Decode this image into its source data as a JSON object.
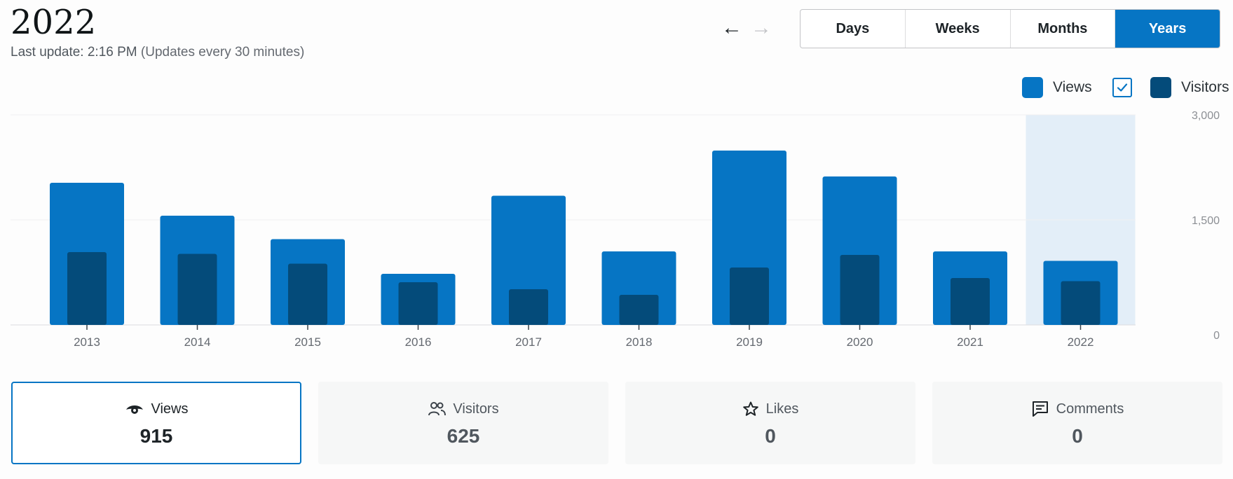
{
  "header": {
    "title": "2022",
    "last_update": "Last update: 2:16 PM",
    "update_note": "(Updates every 30 minutes)"
  },
  "nav": {
    "prev_glyph": "←",
    "next_glyph": "→"
  },
  "periods": [
    {
      "label": "Days",
      "active": false
    },
    {
      "label": "Weeks",
      "active": false
    },
    {
      "label": "Months",
      "active": false
    },
    {
      "label": "Years",
      "active": true
    }
  ],
  "legend": {
    "views_label": "Views",
    "visitors_label": "Visitors",
    "visitors_checked": true
  },
  "colors": {
    "views": "#0675c4",
    "visitors": "#044b7a",
    "selected_highlight": "#e3eef8",
    "accent": "#0675c4"
  },
  "chart_data": {
    "type": "bar",
    "categories": [
      "2013",
      "2014",
      "2015",
      "2016",
      "2017",
      "2018",
      "2019",
      "2020",
      "2021",
      "2022"
    ],
    "series": [
      {
        "name": "Views",
        "values": [
          2030,
          1560,
          1225,
          730,
          1845,
          1050,
          2490,
          2120,
          1050,
          915
        ]
      },
      {
        "name": "Visitors",
        "values": [
          1040,
          1015,
          875,
          610,
          510,
          430,
          820,
          1000,
          670,
          625
        ]
      }
    ],
    "ylim": [
      0,
      3000
    ],
    "yticks": [
      "3,000",
      "1,500",
      "0"
    ],
    "selected_category": "2022",
    "grid": true
  },
  "stats": [
    {
      "label": "Views",
      "value": "915",
      "icon": "eye-icon",
      "active": true
    },
    {
      "label": "Visitors",
      "value": "625",
      "icon": "people-icon",
      "active": false
    },
    {
      "label": "Likes",
      "value": "0",
      "icon": "star-icon",
      "active": false
    },
    {
      "label": "Comments",
      "value": "0",
      "icon": "comment-icon",
      "active": false
    }
  ]
}
